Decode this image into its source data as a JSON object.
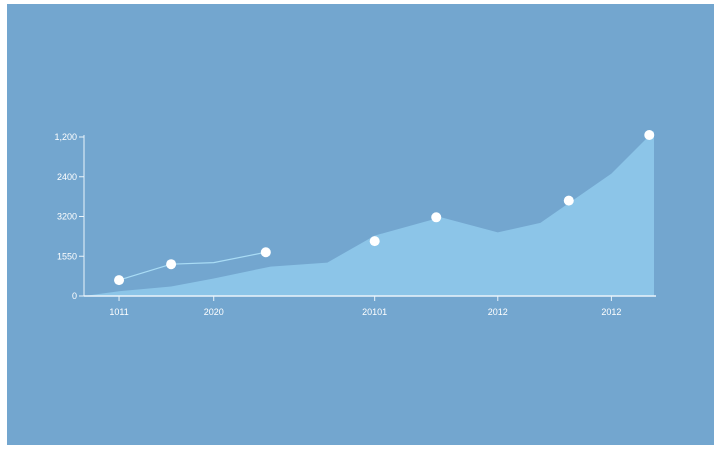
{
  "colors": {
    "background": "#73a6cf",
    "area_fill": "#8cc5e8",
    "axis": "#eaf4fb",
    "line": "#a9dcf5",
    "point": "#ffffff"
  },
  "chart_data": {
    "type": "area",
    "title": "",
    "xlabel": "",
    "ylabel": "",
    "grid": false,
    "y_tick_labels": [
      "0",
      "1550",
      "3200",
      "2400",
      "1,200"
    ],
    "x_tick_labels": [
      "1011",
      "2020",
      "20101",
      "2012",
      "2012"
    ],
    "x_tick_positions": [
      1,
      2,
      3.7,
      5,
      6.2
    ],
    "xlim": [
      0.63,
      6.65
    ],
    "ylim": [
      0,
      4
    ],
    "y_tick_values": [
      0,
      1,
      2,
      3,
      4
    ],
    "area": {
      "x": [
        0.63,
        1.0,
        1.55,
        2.0,
        2.6,
        3.2,
        3.7,
        4.4,
        5.0,
        5.45,
        6.2,
        6.65
      ],
      "y": [
        0.0,
        0.12,
        0.24,
        0.44,
        0.74,
        0.84,
        1.52,
        1.98,
        1.6,
        1.84,
        3.08,
        4.15
      ]
    },
    "line": {
      "x": [
        1.0,
        1.55,
        2.0,
        2.55
      ],
      "y": [
        0.4,
        0.8,
        0.84,
        1.1
      ]
    },
    "points": {
      "x": [
        1.0,
        1.55,
        2.55,
        3.7,
        4.35,
        5.75,
        6.6
      ],
      "y": [
        0.4,
        0.8,
        1.1,
        1.38,
        1.98,
        2.4,
        4.05
      ]
    }
  }
}
